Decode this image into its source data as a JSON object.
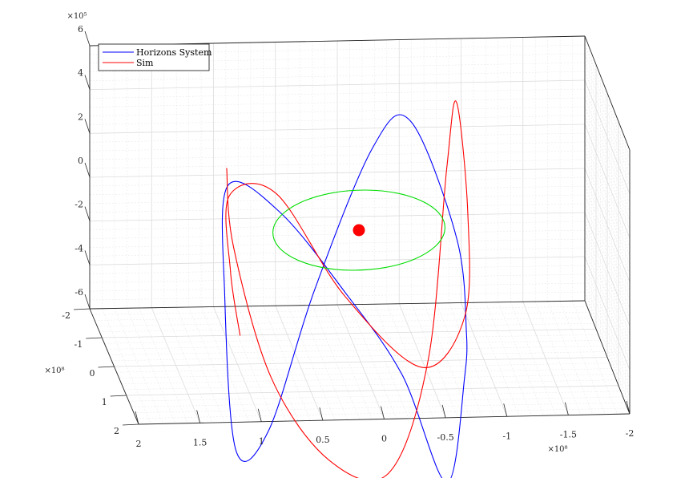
{
  "chart_data": {
    "type": "line",
    "title": "",
    "view": "3d-perspective",
    "grid": true,
    "minor_grid": true,
    "legend": {
      "placement": "top-left",
      "entries": [
        {
          "label": "Horizons System",
          "color": "#0000ff"
        },
        {
          "label": "Sim",
          "color": "#ff0000"
        }
      ]
    },
    "z_axis": {
      "exponent_label": "×10⁵",
      "ticks": [
        {
          "value": 6,
          "label": "6"
        },
        {
          "value": 4,
          "label": "4"
        },
        {
          "value": 2,
          "label": "2"
        },
        {
          "value": 0,
          "label": "0"
        },
        {
          "value": -2,
          "label": "-2"
        },
        {
          "value": -4,
          "label": "-4"
        },
        {
          "value": -6,
          "label": "-6"
        }
      ],
      "range": [
        -600000,
        600000
      ]
    },
    "y_axis": {
      "exponent_label": "×10⁸",
      "ticks": [
        {
          "value": -2,
          "label": "-2"
        },
        {
          "value": -1,
          "label": "-1"
        },
        {
          "value": 0,
          "label": "0"
        },
        {
          "value": 1,
          "label": "1"
        },
        {
          "value": 2,
          "label": "2"
        }
      ],
      "range": [
        -200000000,
        200000000
      ]
    },
    "x_axis": {
      "exponent_label": "×10⁸",
      "ticks": [
        {
          "value": 2,
          "label": "2"
        },
        {
          "value": 1.5,
          "label": "1.5"
        },
        {
          "value": 1,
          "label": "1"
        },
        {
          "value": 0.5,
          "label": "0.5"
        },
        {
          "value": 0,
          "label": "0"
        },
        {
          "value": -0.5,
          "label": "-0.5"
        },
        {
          "value": -1,
          "label": "-1"
        },
        {
          "value": -1.5,
          "label": "-1.5"
        },
        {
          "value": -2,
          "label": "-2"
        }
      ],
      "range": [
        -200000000,
        200000000
      ]
    },
    "series": [
      {
        "name": "Horizons System",
        "color": "#0000ff",
        "points": [
          [
            -1.06,
            0.52,
            -6.0
          ],
          [
            -1.11,
            0.31,
            -4.6
          ],
          [
            -1.05,
            -0.49,
            -1.4
          ],
          [
            -0.58,
            -1.43,
            2.6
          ],
          [
            -0.14,
            -1.12,
            1.9
          ],
          [
            0.63,
            0.01,
            -3.0
          ],
          [
            1.22,
            1.33,
            -7.4
          ],
          [
            1.58,
            1.68,
            -7.7
          ],
          [
            1.56,
            0.82,
            -1.7
          ],
          [
            1.43,
            0.12,
            2.4
          ],
          [
            0.91,
            -0.13,
            0.6
          ],
          [
            0.25,
            0.13,
            -2.9
          ],
          [
            -0.33,
            0.6,
            -6.0
          ],
          [
            -0.77,
            1.33,
            -9.9
          ],
          [
            -1.06,
            0.52,
            -6.0
          ]
        ]
      },
      {
        "name": "Sim",
        "color": "#ff0000",
        "points": [
          [
            1.52,
            0.41,
            -4.5
          ],
          [
            1.56,
            0.11,
            -1.9
          ],
          [
            1.47,
            -0.13,
            1.4
          ],
          [
            0.91,
            -0.09,
            1.6
          ],
          [
            0.22,
            0.44,
            -2.4
          ],
          [
            -0.6,
            0.76,
            -5.3
          ],
          [
            -1.12,
            0.28,
            -3.7
          ],
          [
            -1.24,
            -0.4,
            0.1
          ],
          [
            -1.2,
            -1.12,
            4.2
          ],
          [
            -1.02,
            -0.76,
            1.6
          ],
          [
            -0.65,
            0.53,
            -5.4
          ],
          [
            -0.1,
            1.31,
            -9.5
          ],
          [
            0.6,
            1.14,
            -9.2
          ],
          [
            1.21,
            0.56,
            -6.3
          ],
          [
            1.52,
            -0.15,
            -1.2
          ],
          [
            1.52,
            -0.57,
            1.9
          ]
        ]
      },
      {
        "name": "",
        "color": "#00dd00",
        "points": [
          [
            0,
            -1,
            0
          ],
          [
            0.383,
            -0.924,
            0
          ],
          [
            0.707,
            -0.707,
            0
          ],
          [
            0.924,
            -0.383,
            0
          ],
          [
            1,
            0,
            0
          ],
          [
            0.924,
            0.383,
            0
          ],
          [
            0.707,
            0.707,
            0
          ],
          [
            0.383,
            0.924,
            0
          ],
          [
            0,
            1,
            0
          ],
          [
            -0.383,
            0.924,
            0
          ],
          [
            -0.707,
            0.707,
            0
          ],
          [
            -0.924,
            0.383,
            0
          ],
          [
            -1,
            0,
            0
          ],
          [
            -0.924,
            -0.383,
            0
          ],
          [
            -0.707,
            -0.707,
            0
          ],
          [
            -0.383,
            -0.924,
            0
          ],
          [
            0,
            -1,
            0
          ]
        ]
      },
      {
        "name": "",
        "color": "#ff0000",
        "type": "marker",
        "points": [
          [
            0,
            0,
            0
          ]
        ]
      }
    ]
  }
}
